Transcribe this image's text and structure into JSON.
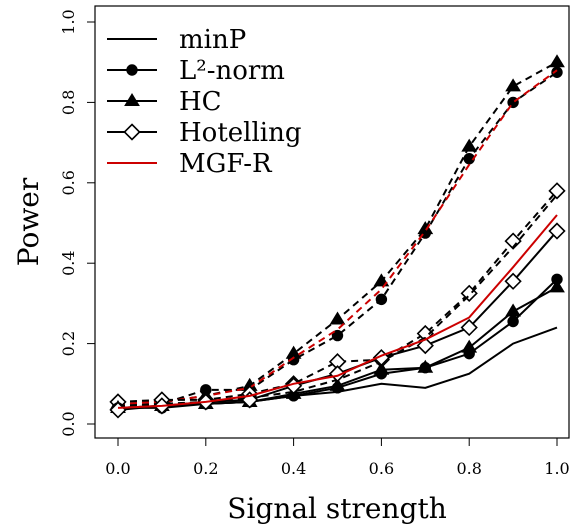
{
  "chart_data": {
    "type": "line",
    "title": "",
    "xlabel": "Signal strength",
    "ylabel": "Power",
    "xlim": [
      0.0,
      1.0
    ],
    "ylim": [
      0.0,
      1.0
    ],
    "x_ticks": [
      "0.0",
      "0.2",
      "0.4",
      "0.6",
      "0.8",
      "1.0"
    ],
    "y_ticks": [
      "0.0",
      "0.2",
      "0.4",
      "0.6",
      "0.8",
      "1.0"
    ],
    "grid": false,
    "legend_position": "top-left",
    "legend": [
      {
        "label": "minP",
        "marker": "none",
        "color": "#000000"
      },
      {
        "label": "L²-norm",
        "marker": "circle",
        "color": "#000000"
      },
      {
        "label": "HC",
        "marker": "triangle",
        "color": "#000000"
      },
      {
        "label": "Hotelling",
        "marker": "diamond",
        "color": "#000000"
      },
      {
        "label": "MGF-R",
        "marker": "none",
        "color": "#cc0000"
      }
    ],
    "x": [
      0.0,
      0.1,
      0.2,
      0.3,
      0.4,
      0.5,
      0.6,
      0.7,
      0.8,
      0.9,
      1.0
    ],
    "series": [
      {
        "group": "dashed",
        "dash": true,
        "color": "#000000",
        "marker": "triangle",
        "values": [
          0.05,
          0.055,
          0.07,
          0.095,
          0.175,
          0.26,
          0.355,
          0.485,
          0.69,
          0.84,
          0.9
        ]
      },
      {
        "group": "dashed",
        "dash": true,
        "color": "#000000",
        "marker": "circle",
        "values": [
          0.045,
          0.05,
          0.085,
          0.085,
          0.16,
          0.22,
          0.31,
          0.475,
          0.66,
          0.8,
          0.875
        ]
      },
      {
        "group": "dashed",
        "dash": true,
        "color": "#cc0000",
        "marker": "none",
        "values": [
          0.05,
          0.055,
          0.07,
          0.09,
          0.165,
          0.235,
          0.335,
          0.48,
          0.645,
          0.8,
          0.88
        ]
      },
      {
        "group": "dashed",
        "dash": true,
        "color": "#000000",
        "marker": "diamond",
        "values": [
          0.055,
          0.06,
          0.06,
          0.075,
          0.1,
          0.155,
          0.16,
          0.225,
          0.325,
          0.455,
          0.58
        ]
      },
      {
        "group": "dashed",
        "dash": true,
        "color": "#000000",
        "marker": "none",
        "values": [
          0.045,
          0.05,
          0.055,
          0.065,
          0.08,
          0.11,
          0.155,
          0.215,
          0.32,
          0.44,
          0.57
        ]
      },
      {
        "group": "solid",
        "dash": false,
        "color": "#000000",
        "marker": "none",
        "values": [
          0.04,
          0.045,
          0.05,
          0.055,
          0.07,
          0.08,
          0.1,
          0.09,
          0.125,
          0.2,
          0.24
        ]
      },
      {
        "group": "solid",
        "dash": false,
        "color": "#000000",
        "marker": "circle",
        "values": [
          0.04,
          0.04,
          0.05,
          0.055,
          0.07,
          0.09,
          0.125,
          0.14,
          0.175,
          0.255,
          0.36
        ]
      },
      {
        "group": "solid",
        "dash": false,
        "color": "#000000",
        "marker": "triangle",
        "values": [
          0.04,
          0.045,
          0.05,
          0.055,
          0.075,
          0.095,
          0.135,
          0.14,
          0.19,
          0.28,
          0.34
        ]
      },
      {
        "group": "solid",
        "dash": false,
        "color": "#000000",
        "marker": "diamond",
        "values": [
          0.035,
          0.045,
          0.055,
          0.06,
          0.095,
          0.125,
          0.165,
          0.195,
          0.24,
          0.355,
          0.48
        ]
      },
      {
        "group": "solid",
        "dash": false,
        "color": "#cc0000",
        "marker": "none",
        "values": [
          0.04,
          0.045,
          0.055,
          0.07,
          0.1,
          0.12,
          0.17,
          0.21,
          0.265,
          0.39,
          0.52
        ]
      }
    ]
  }
}
